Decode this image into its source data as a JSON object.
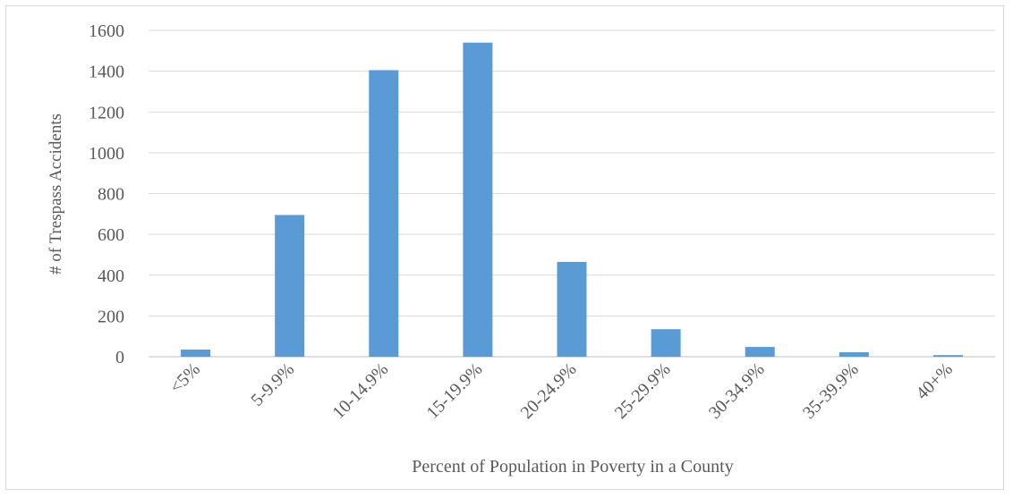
{
  "chart_data": {
    "type": "bar",
    "categories": [
      "<5%",
      "5-9.9%",
      "10-14.9%",
      "15-19.9%",
      "20-24.9%",
      "25-29.9%",
      "30-34.9%",
      "35-39.9%",
      "40+%"
    ],
    "values": [
      35,
      695,
      1405,
      1540,
      465,
      135,
      48,
      22,
      8
    ],
    "xlabel": "Percent of Population in Poverty in a County",
    "ylabel": "# of Trespass Accidents",
    "ylim": [
      0,
      1600
    ],
    "yticks": [
      "0",
      "200",
      "400",
      "600",
      "800",
      "1000",
      "1200",
      "1400",
      "1600"
    ],
    "grid": true,
    "colors": {
      "bar": "#5b9bd5",
      "grid": "#d9d9d9",
      "axis": "#bfbfbf"
    }
  }
}
